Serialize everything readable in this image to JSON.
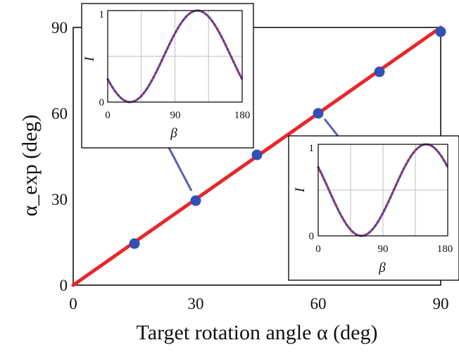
{
  "chart_data": [
    {
      "type": "scatter",
      "xlabel": "Target rotation angle α (deg)",
      "ylabel": "α_exp (deg)",
      "xlim": [
        0,
        90
      ],
      "ylim": [
        0,
        90
      ],
      "xticks": [
        0,
        30,
        60,
        90
      ],
      "yticks": [
        0,
        30,
        60,
        90
      ],
      "series": [
        {
          "values": [
            [
              15,
              14.5
            ],
            [
              30,
              29.5
            ],
            [
              45,
              45.5
            ],
            [
              60,
              60
            ],
            [
              75,
              74.5
            ],
            [
              90,
              88.5
            ]
          ],
          "color": "#3350b5"
        },
        {
          "values": [
            [
              0,
              0
            ],
            [
              90,
              90
            ]
          ],
          "style": "line",
          "color": "#e8262b"
        }
      ],
      "grid": false
    },
    {
      "type": "line",
      "inset_for": {
        "x": 30,
        "y": 29.5
      },
      "xlabel": "β",
      "ylabel": "I",
      "xlim": [
        0,
        180
      ],
      "ylim": [
        0,
        1
      ],
      "xticks": [
        0,
        90,
        180
      ],
      "yticks": [
        0,
        1
      ],
      "min_at": 30,
      "max_at": 120,
      "series": [
        {
          "style": "solid",
          "color": "#e8262b"
        },
        {
          "style": "dotted",
          "color": "#3350b5"
        }
      ],
      "grid": true
    },
    {
      "type": "line",
      "inset_for": {
        "x": 60,
        "y": 60
      },
      "xlabel": "β",
      "ylabel": "I",
      "xlim": [
        0,
        180
      ],
      "ylim": [
        0,
        1
      ],
      "xticks": [
        0,
        90,
        180
      ],
      "yticks": [
        0,
        1
      ],
      "min_at": 60,
      "max_at": 150,
      "series": [
        {
          "style": "solid",
          "color": "#e8262b"
        },
        {
          "style": "dotted",
          "color": "#3350b5"
        }
      ],
      "grid": true
    }
  ],
  "colors": {
    "fit_line": "#e8262b",
    "data_point": "#3350b5",
    "connector": "#5b5fb3",
    "grid": "#bdbdbd"
  }
}
